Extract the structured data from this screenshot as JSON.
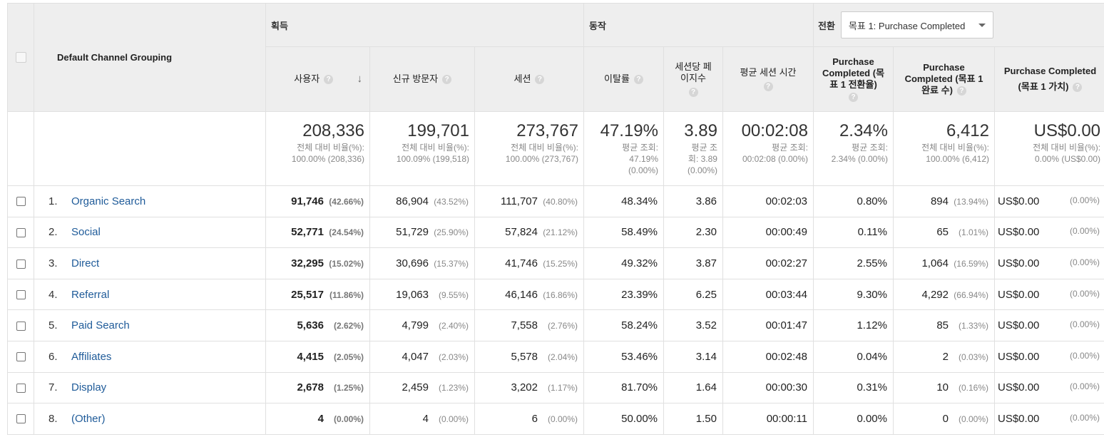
{
  "header": {
    "dimension": "Default Channel Grouping",
    "groups": {
      "acquisition": "획득",
      "behavior": "동작",
      "conversions": "전환"
    },
    "goal_select": "목표 1: Purchase Completed",
    "metrics": {
      "users": "사용자",
      "new_users": "신규 방문자",
      "sessions": "세션",
      "bounce_rate": "이탈률",
      "pages_per_session_1": "세션당 페",
      "pages_per_session_2": "이지수",
      "avg_session": "평균 세션 시간",
      "conv_rate_1": "Purchase",
      "conv_rate_2": "Completed (목",
      "conv_rate_3": "표 1 전환율)",
      "completions_1": "Purchase",
      "completions_2": "Completed (목표 1",
      "completions_3": "완료 수)",
      "value_1": "Purchase Completed",
      "value_2": "(목표 1 가치)"
    },
    "help": "?"
  },
  "totals": {
    "users": {
      "value": "208,336",
      "s1": "전체 대비 비율(%):",
      "s2": "100.00% (208,336)"
    },
    "new_users": {
      "value": "199,701",
      "s1": "전체 대비 비율(%):",
      "s2": "100.09% (199,518)"
    },
    "sessions": {
      "value": "273,767",
      "s1": "전체 대비 비율(%):",
      "s2": "100.00% (273,767)"
    },
    "bounce_rate": {
      "value": "47.19%",
      "s1": "평균 조회:",
      "s2": "47.19%",
      "s3": "(0.00%)"
    },
    "pages_per_session": {
      "value": "3.89",
      "s1": "평균 조",
      "s2": "회: 3.89",
      "s3": "(0.00%)"
    },
    "avg_session": {
      "value": "00:02:08",
      "s1": "평균 조회:",
      "s2": "00:02:08 (0.00%)"
    },
    "conv_rate": {
      "value": "2.34%",
      "s1": "평균 조회:",
      "s2": "2.34% (0.00%)"
    },
    "completions": {
      "value": "6,412",
      "s1": "전체 대비 비율(%):",
      "s2": "100.00% (6,412)"
    },
    "value": {
      "value": "US$0.00",
      "s1": "전체 대비 비율(%):",
      "s2": "0.00% (US$0.00)"
    }
  },
  "rows": [
    {
      "idx": "1.",
      "name": "Organic Search",
      "users": "91,746",
      "users_pct": "(42.66%)",
      "new_users": "86,904",
      "new_users_pct": "(43.52%)",
      "sessions": "111,707",
      "sessions_pct": "(40.80%)",
      "bounce": "48.34%",
      "pps": "3.86",
      "dur": "00:02:03",
      "conv": "0.80%",
      "comp": "894",
      "comp_pct": "(13.94%)",
      "val": "US$0.00",
      "val_pct": "(0.00%)"
    },
    {
      "idx": "2.",
      "name": "Social",
      "users": "52,771",
      "users_pct": "(24.54%)",
      "new_users": "51,729",
      "new_users_pct": "(25.90%)",
      "sessions": "57,824",
      "sessions_pct": "(21.12%)",
      "bounce": "58.49%",
      "pps": "2.30",
      "dur": "00:00:49",
      "conv": "0.11%",
      "comp": "65",
      "comp_pct": "(1.01%)",
      "val": "US$0.00",
      "val_pct": "(0.00%)"
    },
    {
      "idx": "3.",
      "name": "Direct",
      "users": "32,295",
      "users_pct": "(15.02%)",
      "new_users": "30,696",
      "new_users_pct": "(15.37%)",
      "sessions": "41,746",
      "sessions_pct": "(15.25%)",
      "bounce": "49.32%",
      "pps": "3.87",
      "dur": "00:02:27",
      "conv": "2.55%",
      "comp": "1,064",
      "comp_pct": "(16.59%)",
      "val": "US$0.00",
      "val_pct": "(0.00%)"
    },
    {
      "idx": "4.",
      "name": "Referral",
      "users": "25,517",
      "users_pct": "(11.86%)",
      "new_users": "19,063",
      "new_users_pct": "(9.55%)",
      "sessions": "46,146",
      "sessions_pct": "(16.86%)",
      "bounce": "23.39%",
      "pps": "6.25",
      "dur": "00:03:44",
      "conv": "9.30%",
      "comp": "4,292",
      "comp_pct": "(66.94%)",
      "val": "US$0.00",
      "val_pct": "(0.00%)"
    },
    {
      "idx": "5.",
      "name": "Paid Search",
      "users": "5,636",
      "users_pct": "(2.62%)",
      "new_users": "4,799",
      "new_users_pct": "(2.40%)",
      "sessions": "7,558",
      "sessions_pct": "(2.76%)",
      "bounce": "58.24%",
      "pps": "3.52",
      "dur": "00:01:47",
      "conv": "1.12%",
      "comp": "85",
      "comp_pct": "(1.33%)",
      "val": "US$0.00",
      "val_pct": "(0.00%)"
    },
    {
      "idx": "6.",
      "name": "Affiliates",
      "users": "4,415",
      "users_pct": "(2.05%)",
      "new_users": "4,047",
      "new_users_pct": "(2.03%)",
      "sessions": "5,578",
      "sessions_pct": "(2.04%)",
      "bounce": "53.46%",
      "pps": "3.14",
      "dur": "00:02:48",
      "conv": "0.04%",
      "comp": "2",
      "comp_pct": "(0.03%)",
      "val": "US$0.00",
      "val_pct": "(0.00%)"
    },
    {
      "idx": "7.",
      "name": "Display",
      "users": "2,678",
      "users_pct": "(1.25%)",
      "new_users": "2,459",
      "new_users_pct": "(1.23%)",
      "sessions": "3,202",
      "sessions_pct": "(1.17%)",
      "bounce": "81.70%",
      "pps": "1.64",
      "dur": "00:00:30",
      "conv": "0.31%",
      "comp": "10",
      "comp_pct": "(0.16%)",
      "val": "US$0.00",
      "val_pct": "(0.00%)"
    },
    {
      "idx": "8.",
      "name": "(Other)",
      "users": "4",
      "users_pct": "(0.00%)",
      "new_users": "4",
      "new_users_pct": "(0.00%)",
      "sessions": "6",
      "sessions_pct": "(0.00%)",
      "bounce": "50.00%",
      "pps": "1.50",
      "dur": "00:00:11",
      "conv": "0.00%",
      "comp": "0",
      "comp_pct": "(0.00%)",
      "val": "US$0.00",
      "val_pct": "(0.00%)"
    }
  ],
  "colors": {
    "header_bg": "#eeeeee",
    "link": "#1f5b99",
    "border": "#e0e0e0"
  }
}
